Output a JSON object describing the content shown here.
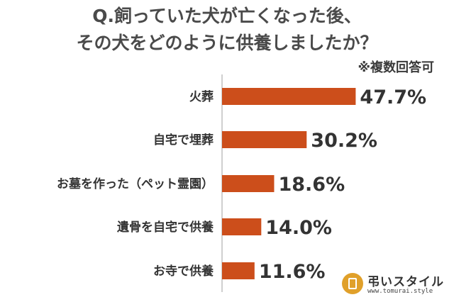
{
  "title_lines": [
    "Q.飼っていた犬が亡くなった後、",
    "その犬をどのように供養しましたか？"
  ],
  "note": "※複数回答可",
  "brand": {
    "name": "弔いスタイル",
    "url": "www.tomurai.style"
  },
  "colors": {
    "bar": "#cc4e1b",
    "axis": "#bfbfbf"
  },
  "chart_data": {
    "type": "bar",
    "orientation": "horizontal",
    "categories": [
      "火葬",
      "自宅で埋葬",
      "お墓を作った（ペット霊園）",
      "遺骨を自宅で供養",
      "お寺で供養"
    ],
    "values": [
      47.7,
      30.2,
      18.6,
      14.0,
      11.6
    ],
    "value_labels": [
      "47.7%",
      "30.2%",
      "18.6%",
      "14.0%",
      "11.6%"
    ],
    "xlim": [
      0,
      50
    ],
    "grid": false,
    "legend": "none"
  }
}
